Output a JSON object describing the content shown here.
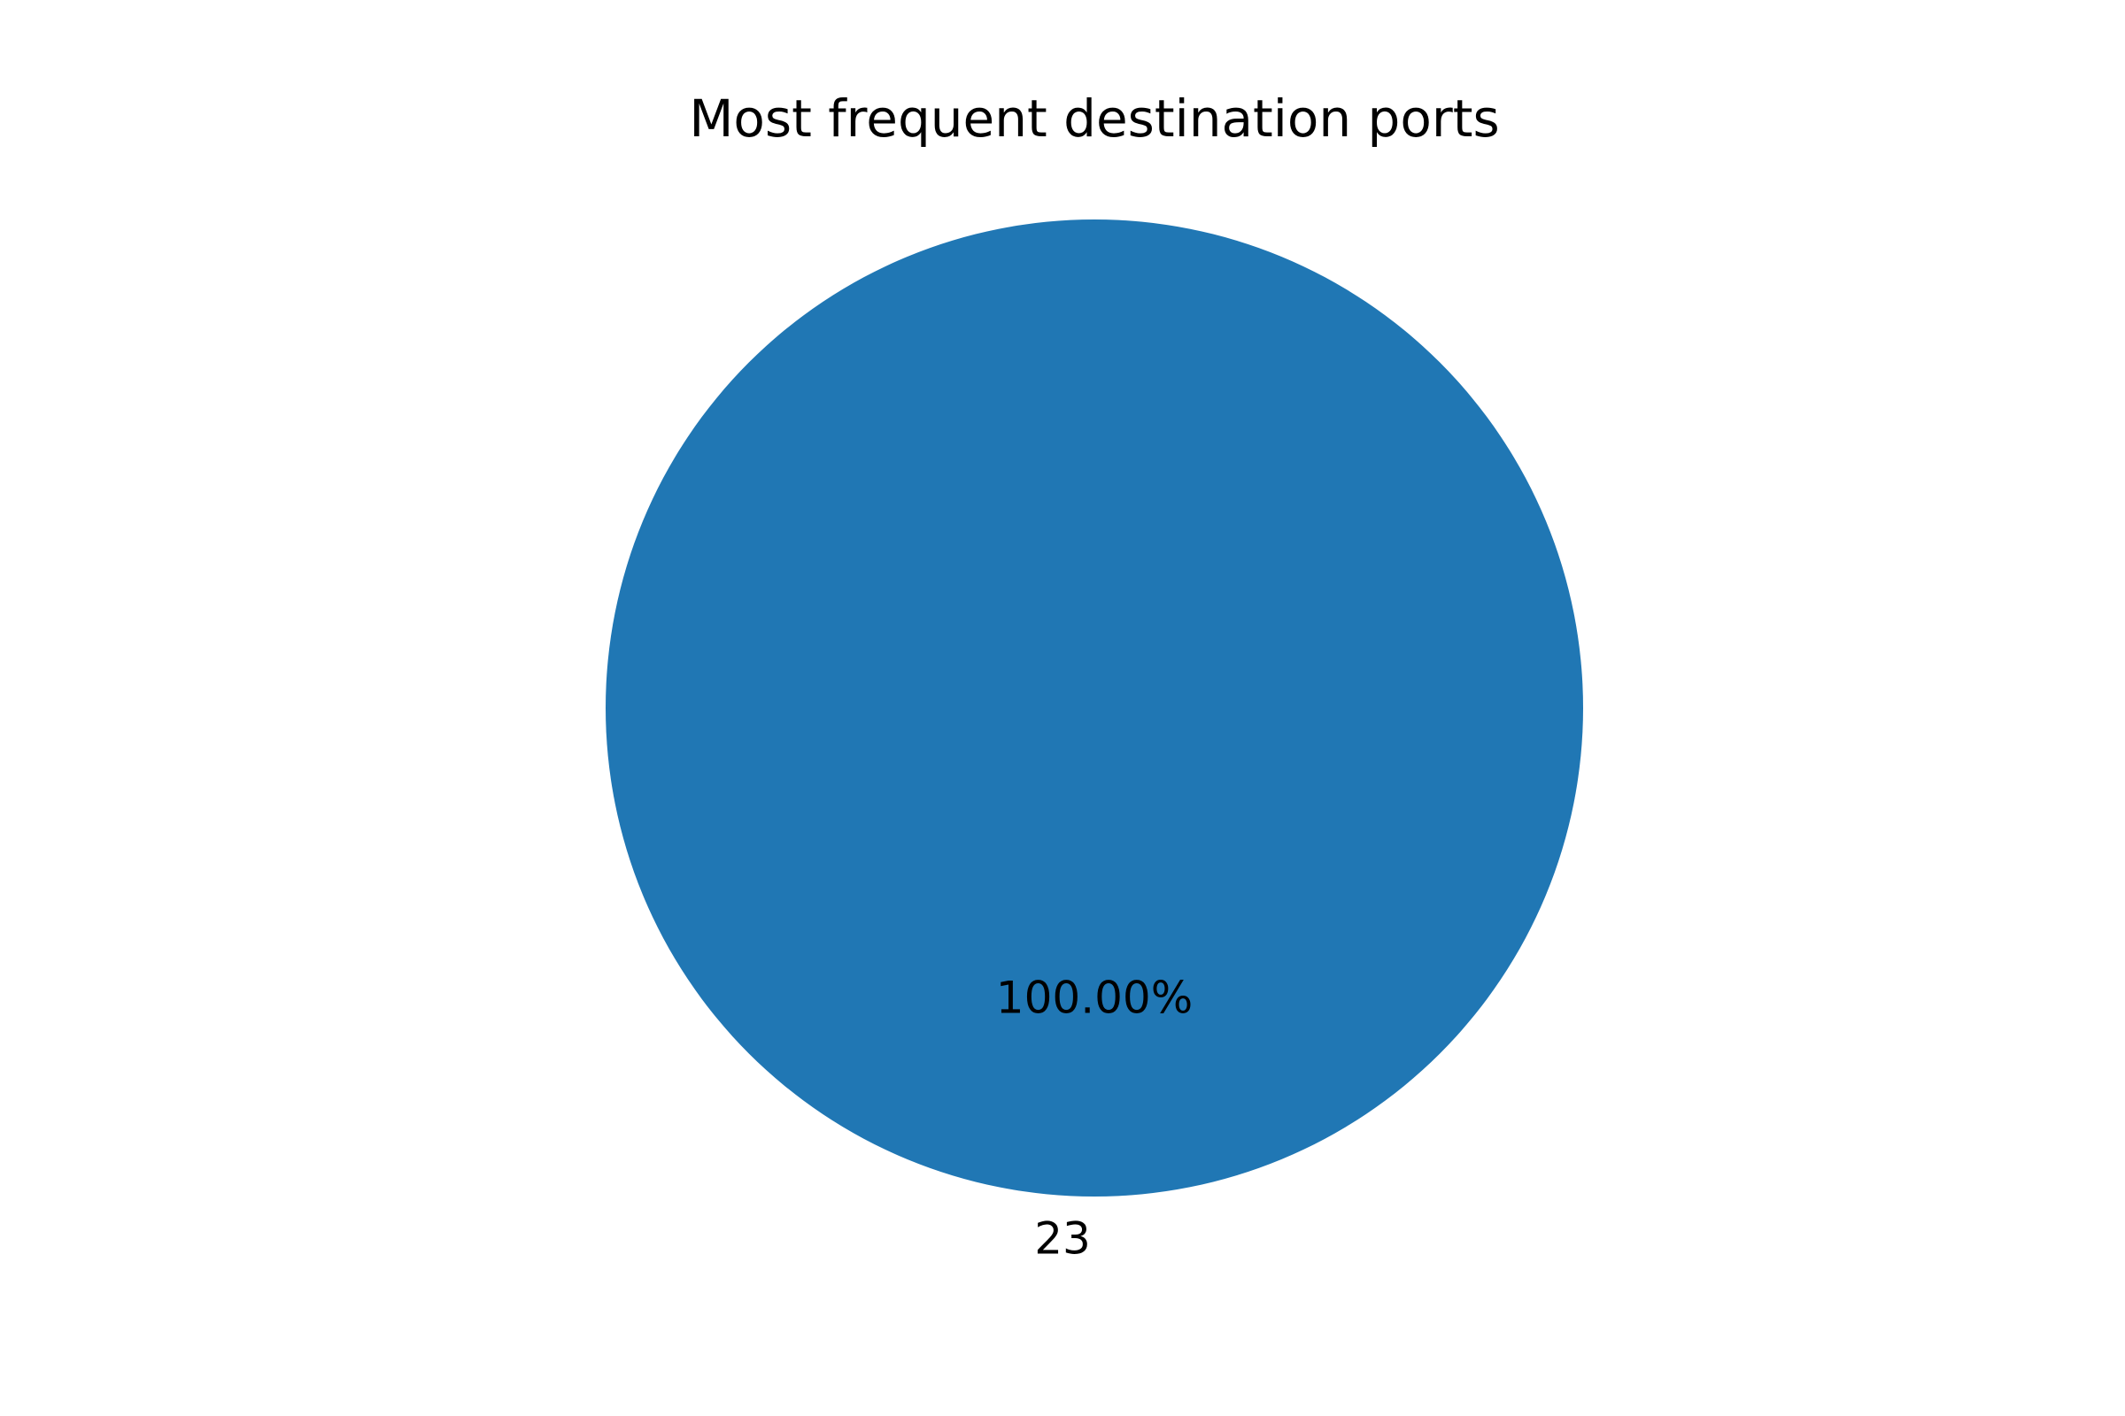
{
  "chart_data": {
    "type": "pie",
    "title": "Most frequent destination ports",
    "categories": [
      "23"
    ],
    "values": [
      100.0
    ],
    "value_labels": [
      "100.00%"
    ],
    "colors": [
      "#2077b4"
    ],
    "legend": "none"
  }
}
